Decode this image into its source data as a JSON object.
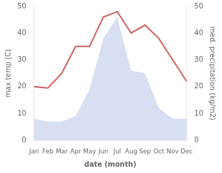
{
  "chart_data": {
    "type": "line",
    "xlabel": "date (month)",
    "ylabel": "max temp (C)",
    "y2label": "med. precipitation (kg/m2)",
    "categories": [
      "Jan",
      "Feb",
      "Mar",
      "Apr",
      "May",
      "Jun",
      "Jul",
      "Aug",
      "Sep",
      "Oct",
      "Nov",
      "Dec"
    ],
    "series": [
      {
        "type": "area",
        "color": "#b8c4e8",
        "values": [
          8,
          7,
          7,
          9,
          19,
          38,
          46,
          26,
          25,
          12,
          8,
          8
        ]
      },
      {
        "type": "line",
        "color": "#cd5c5c",
        "values": [
          20,
          19.5,
          25,
          35,
          35,
          46,
          48,
          40,
          43,
          38,
          30,
          22
        ]
      }
    ],
    "ylim": [
      0,
      50
    ],
    "yticks": [
      0,
      10,
      20,
      30,
      40,
      50
    ],
    "y2lim": [
      0,
      50
    ],
    "y2ticks": [
      0,
      10,
      20,
      30,
      40,
      50
    ],
    "grid": false
  }
}
